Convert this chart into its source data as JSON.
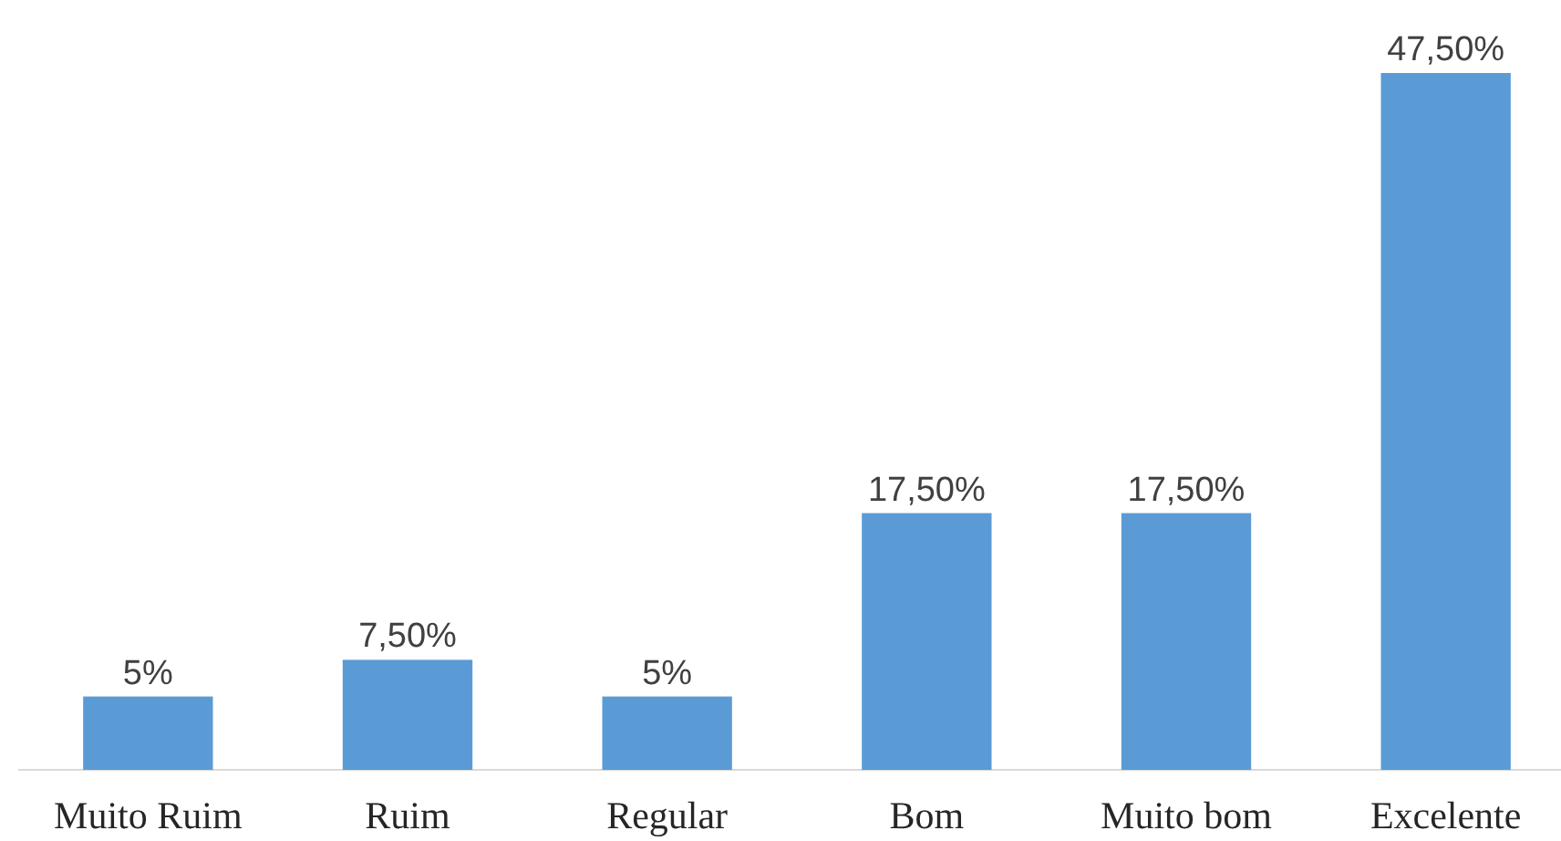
{
  "chart_data": {
    "type": "bar",
    "categories": [
      "Muito Ruim",
      "Ruim",
      "Regular",
      "Bom",
      "Muito bom",
      "Excelente"
    ],
    "values": [
      5,
      7.5,
      5,
      17.5,
      17.5,
      47.5
    ],
    "value_labels": [
      "5%",
      "7,50%",
      "5%",
      "17,50%",
      "17,50%",
      "47,50%"
    ],
    "color": "#5b9bd5"
  }
}
